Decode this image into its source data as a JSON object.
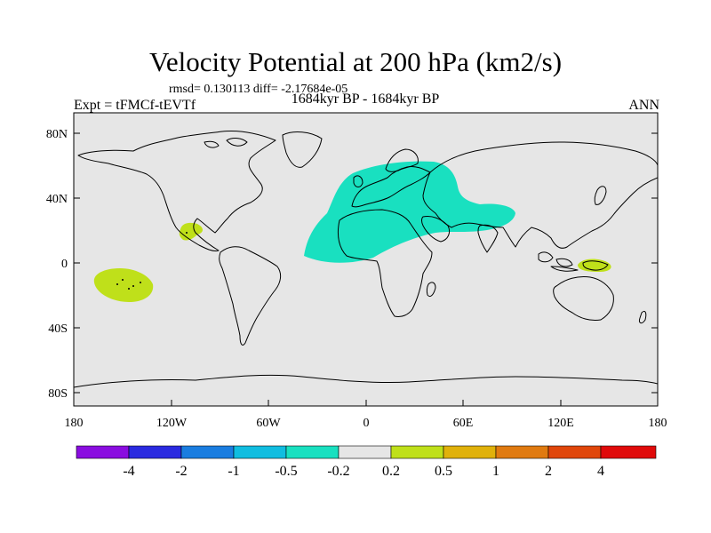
{
  "figure": {
    "title": "Velocity Potential at 200 hPa (km2/s)",
    "stats": "rmsd= 0.130113 diff= -2.17684e-05",
    "left_label": "Expt = tFMCf-tEVTf",
    "center_label": "1684kyr BP - 1684kyr BP",
    "right_label": "ANN"
  },
  "axes": {
    "lon_ticks": [
      "180",
      "120W",
      "60W",
      "0",
      "60E",
      "120E",
      "180"
    ],
    "lat_ticks": [
      "80N",
      "40N",
      "0",
      "40S",
      "80S"
    ]
  },
  "colorbar": {
    "colors": [
      "#8a0de0",
      "#2a2ae0",
      "#1a7de0",
      "#10bde0",
      "#19e0c0",
      "#e6e6e6",
      "#bfe01a",
      "#e0b10a",
      "#e07a10",
      "#e0460a",
      "#e00a0a"
    ],
    "labels": [
      "-4",
      "-2",
      "-1",
      "-0.5",
      "-0.2",
      "0.2",
      "0.5",
      "1",
      "2",
      "4"
    ]
  },
  "regions": [
    {
      "name": "negative-anomaly-africa-eurasia",
      "level": "-0.5 to -0.2",
      "color": "#19e0c0"
    },
    {
      "name": "positive-anomaly-central-america",
      "level": "0.2 to 0.5",
      "color": "#bfe01a"
    },
    {
      "name": "positive-anomaly-south-pacific",
      "level": "0.2 to 0.5",
      "color": "#bfe01a"
    },
    {
      "name": "positive-anomaly-new-guinea",
      "level": "0.2 to 0.5",
      "color": "#bfe01a"
    }
  ]
}
